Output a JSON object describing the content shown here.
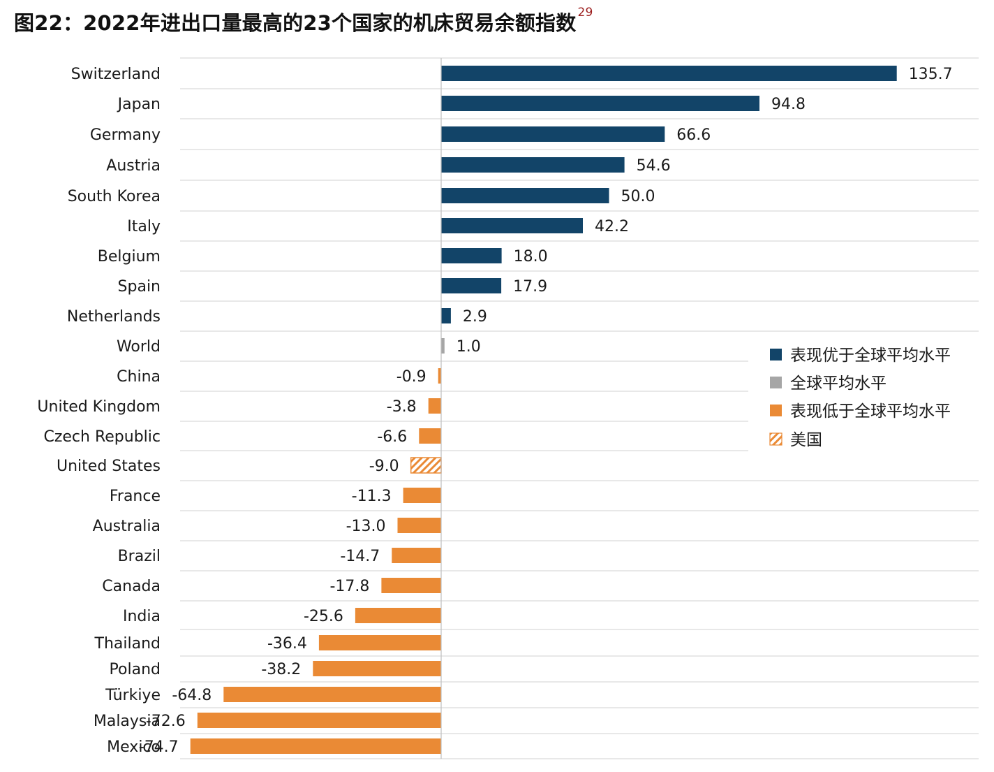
{
  "title": "图22：2022年进出口量最高的23个国家的机床贸易余额指数",
  "footnote_ref": "29",
  "colors": {
    "above": "#124468",
    "world": "#a6a6a6",
    "below": "#ea8a35",
    "grid": "#d9d9d9",
    "axis": "#bfbfbf"
  },
  "legend": [
    {
      "key": "above",
      "label": "表现优于全球平均水平"
    },
    {
      "key": "world",
      "label": "全球平均水平"
    },
    {
      "key": "below",
      "label": "表现低于全球平均水平"
    },
    {
      "key": "hatched",
      "label": "美国"
    }
  ],
  "chart_data": {
    "type": "bar",
    "orientation": "horizontal",
    "title": "图22：2022年进出口量最高的23个国家的机床贸易余额指数",
    "categories": [
      "Switzerland",
      "Japan",
      "Germany",
      "Austria",
      "South Korea",
      "Italy",
      "Belgium",
      "Spain",
      "Netherlands",
      "World",
      "China",
      "United Kingdom",
      "Czech Republic",
      "United States",
      "France",
      "Australia",
      "Brazil",
      "Canada",
      "India",
      "Thailand",
      "Poland",
      "Türkiye",
      "Malaysia",
      "Mexico"
    ],
    "values": [
      135.7,
      94.8,
      66.6,
      54.6,
      50.0,
      42.2,
      18.0,
      17.9,
      2.9,
      1.0,
      -0.9,
      -3.8,
      -6.6,
      -9.0,
      -11.3,
      -13.0,
      -14.7,
      -17.8,
      -25.6,
      -36.4,
      -38.2,
      -64.8,
      -72.6,
      -74.7
    ],
    "value_labels": [
      "135.7",
      "94.8",
      "66.6",
      "54.6",
      "50.0",
      "42.2",
      "18.0",
      "17.9",
      "2.9",
      "1.0",
      "-0.9",
      "-3.8",
      "-6.6",
      "-9.0",
      "-11.3",
      "-13.0",
      "-14.7",
      "-17.8",
      "-25.6",
      "-36.4",
      "-38.2",
      "-64.8",
      "-72.6",
      "-74.7"
    ],
    "groups": [
      "above",
      "above",
      "above",
      "above",
      "above",
      "above",
      "above",
      "above",
      "above",
      "world",
      "below",
      "below",
      "below",
      "hatched",
      "below",
      "below",
      "below",
      "below",
      "below",
      "below",
      "below",
      "below",
      "below",
      "below"
    ],
    "xlim": [
      -78,
      160
    ],
    "grid": true,
    "legend_position": "right"
  }
}
